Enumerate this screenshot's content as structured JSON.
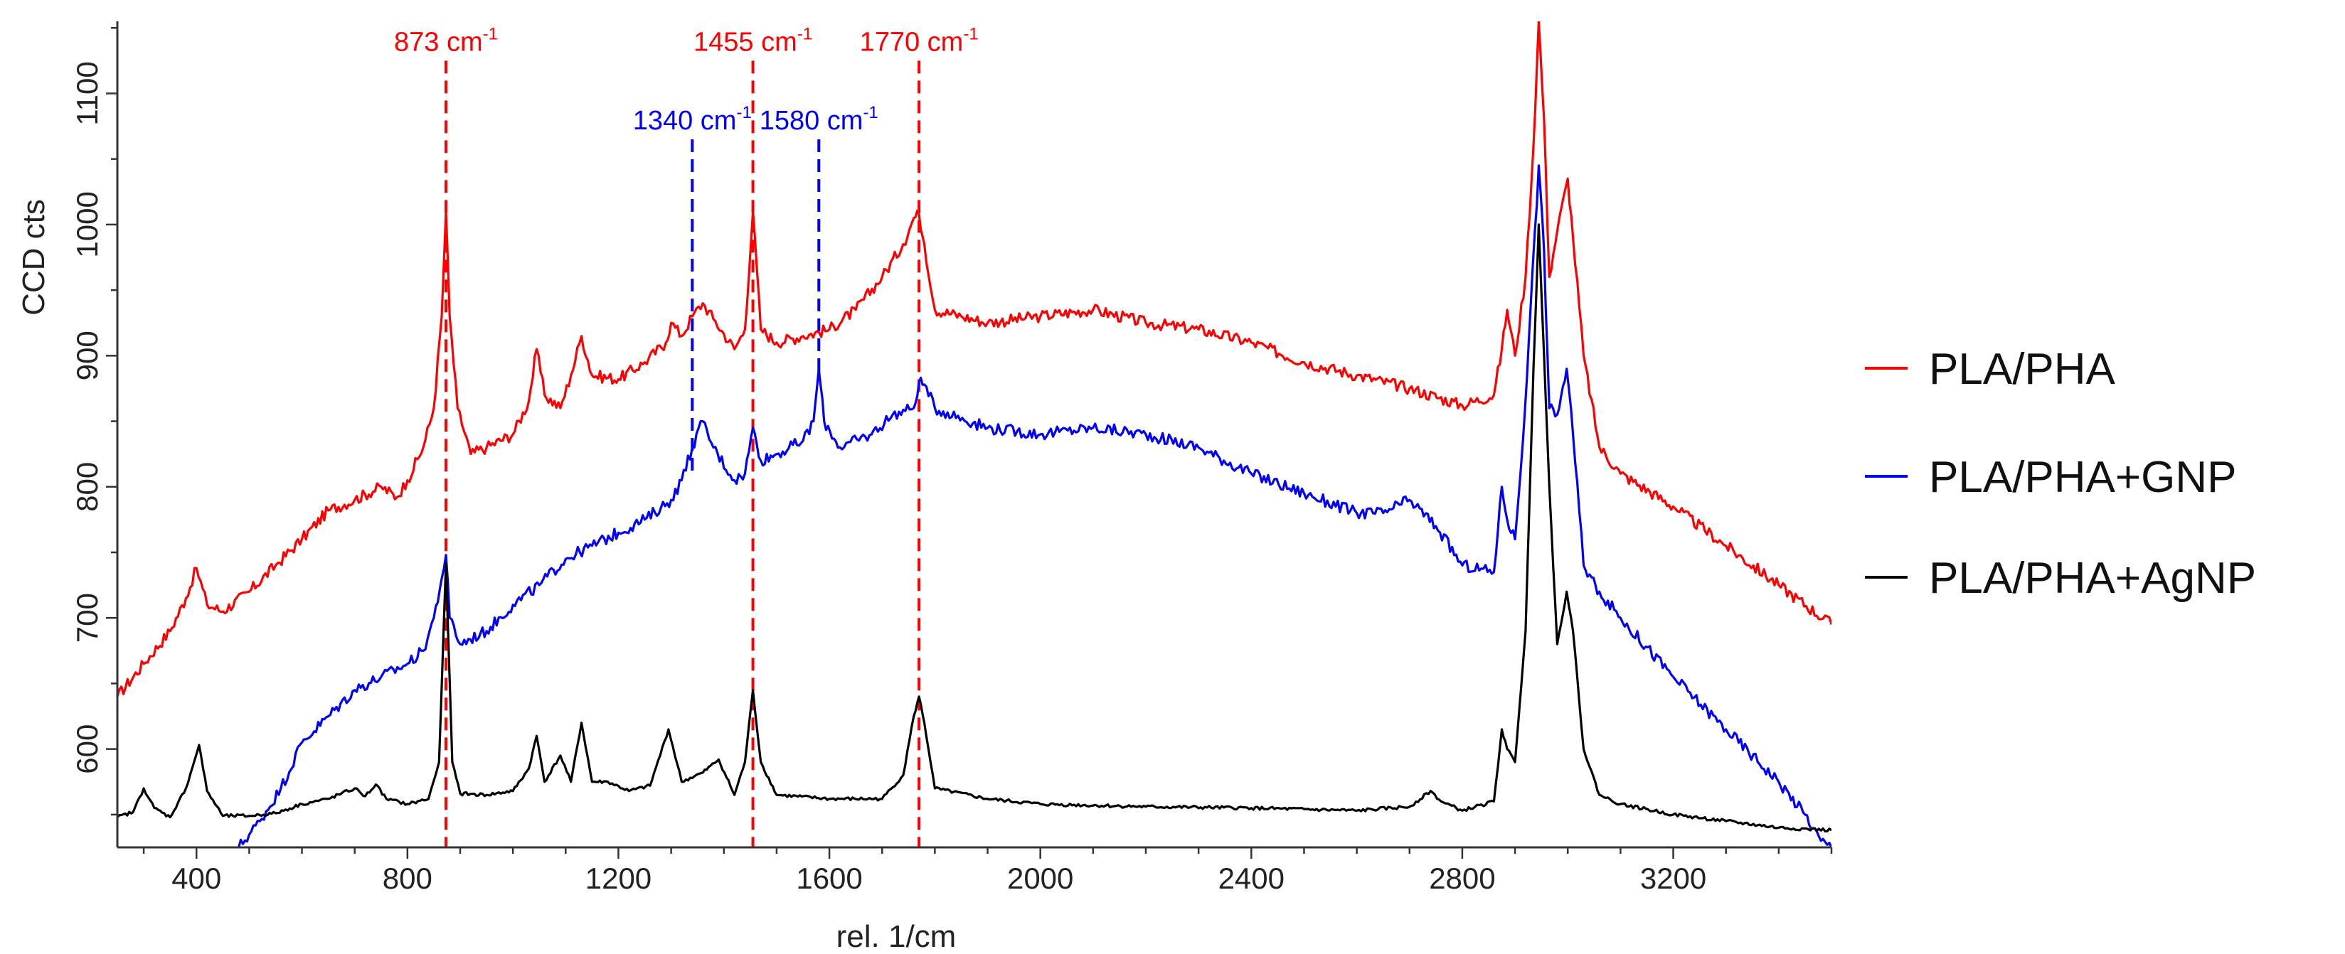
{
  "chart_data": {
    "type": "line",
    "title": "",
    "xlabel": "rel. 1/cm",
    "ylabel": "CCD cts",
    "xlim": [
      250,
      3500
    ],
    "ylim": [
      525,
      1155
    ],
    "xticks": [
      400,
      800,
      1200,
      1600,
      2000,
      2400,
      2800,
      3200
    ],
    "yticks": [
      600,
      700,
      800,
      900,
      1000,
      1100
    ],
    "grid": false,
    "legend_position": "right",
    "series": [
      {
        "name": "PLA/PHA",
        "color": "#ff0000",
        "x": [
          250,
          300,
          350,
          380,
          400,
          420,
          450,
          500,
          550,
          600,
          650,
          700,
          750,
          780,
          800,
          830,
          850,
          865,
          873,
          880,
          895,
          920,
          950,
          1000,
          1030,
          1045,
          1060,
          1090,
          1110,
          1130,
          1150,
          1200,
          1250,
          1290,
          1300,
          1320,
          1340,
          1360,
          1380,
          1420,
          1440,
          1455,
          1470,
          1500,
          1550,
          1600,
          1650,
          1700,
          1740,
          1760,
          1770,
          1780,
          1800,
          1850,
          1900,
          2000,
          2100,
          2200,
          2300,
          2400,
          2500,
          2600,
          2700,
          2800,
          2860,
          2875,
          2885,
          2900,
          2920,
          2935,
          2945,
          2955,
          2965,
          2980,
          3000,
          3010,
          3030,
          3060,
          3100,
          3200,
          3300,
          3400,
          3500
        ],
        "y": [
          640,
          665,
          690,
          715,
          738,
          710,
          705,
          720,
          740,
          760,
          782,
          790,
          800,
          792,
          805,
          830,
          860,
          930,
          1010,
          930,
          860,
          825,
          830,
          840,
          865,
          905,
          870,
          860,
          885,
          915,
          885,
          882,
          895,
          910,
          925,
          915,
          930,
          940,
          928,
          905,
          920,
          1010,
          920,
          910,
          915,
          920,
          935,
          960,
          985,
          1005,
          1008,
          985,
          935,
          930,
          925,
          930,
          935,
          925,
          920,
          910,
          895,
          885,
          875,
          862,
          870,
          905,
          935,
          900,
          960,
          1060,
          1155,
          1080,
          960,
          995,
          1035,
          990,
          900,
          830,
          810,
          785,
          755,
          725,
          695
        ]
      },
      {
        "name": "PLA/PHA+GNP",
        "color": "#0000ff",
        "x": [
          480,
          520,
          560,
          600,
          650,
          700,
          750,
          800,
          830,
          850,
          865,
          873,
          880,
          900,
          950,
          1000,
          1050,
          1100,
          1150,
          1200,
          1250,
          1300,
          1320,
          1340,
          1360,
          1380,
          1420,
          1440,
          1455,
          1470,
          1500,
          1550,
          1570,
          1580,
          1590,
          1620,
          1680,
          1720,
          1760,
          1770,
          1780,
          1800,
          1900,
          2000,
          2100,
          2200,
          2300,
          2400,
          2500,
          2600,
          2650,
          2700,
          2750,
          2800,
          2860,
          2875,
          2885,
          2900,
          2915,
          2930,
          2945,
          2955,
          2965,
          2980,
          2998,
          3010,
          3030,
          3060,
          3100,
          3200,
          3300,
          3400,
          3450,
          3480,
          3500
        ],
        "y": [
          525,
          545,
          570,
          605,
          625,
          645,
          655,
          665,
          675,
          700,
          730,
          748,
          700,
          680,
          690,
          710,
          725,
          745,
          755,
          765,
          775,
          790,
          805,
          830,
          850,
          830,
          805,
          810,
          845,
          820,
          825,
          835,
          850,
          890,
          850,
          830,
          840,
          855,
          860,
          880,
          878,
          860,
          845,
          840,
          845,
          840,
          830,
          810,
          795,
          780,
          780,
          790,
          770,
          740,
          735,
          800,
          775,
          760,
          835,
          940,
          1045,
          980,
          860,
          855,
          890,
          840,
          740,
          720,
          700,
          655,
          615,
          575,
          550,
          530,
          525
        ]
      },
      {
        "name": "PLA/PHA+AgNP",
        "color": "#000000",
        "x": [
          250,
          280,
          300,
          320,
          350,
          380,
          405,
          420,
          450,
          500,
          550,
          600,
          650,
          700,
          720,
          740,
          760,
          800,
          840,
          860,
          873,
          885,
          900,
          950,
          1000,
          1030,
          1045,
          1060,
          1090,
          1110,
          1130,
          1150,
          1180,
          1220,
          1260,
          1295,
          1320,
          1360,
          1390,
          1420,
          1440,
          1455,
          1470,
          1500,
          1600,
          1700,
          1740,
          1760,
          1770,
          1780,
          1800,
          1900,
          2000,
          2200,
          2400,
          2600,
          2700,
          2740,
          2760,
          2800,
          2860,
          2875,
          2885,
          2900,
          2920,
          2935,
          2945,
          2955,
          2965,
          2980,
          2998,
          3010,
          3030,
          3060,
          3100,
          3200,
          3300,
          3400,
          3500
        ],
        "y": [
          548,
          552,
          570,
          555,
          548,
          570,
          603,
          568,
          549,
          549,
          551,
          558,
          562,
          570,
          564,
          573,
          562,
          558,
          562,
          590,
          742,
          590,
          566,
          565,
          568,
          585,
          610,
          575,
          595,
          575,
          620,
          575,
          575,
          568,
          572,
          615,
          575,
          582,
          592,
          565,
          590,
          645,
          590,
          565,
          562,
          562,
          580,
          625,
          640,
          620,
          570,
          562,
          558,
          556,
          555,
          553,
          556,
          568,
          560,
          553,
          560,
          615,
          600,
          590,
          690,
          890,
          1000,
          900,
          800,
          680,
          720,
          690,
          600,
          565,
          558,
          550,
          545,
          540,
          538
        ]
      }
    ],
    "annotations": [
      {
        "label": "873 cm",
        "sup": "-1",
        "x": 873,
        "color": "#ff0000",
        "line_top": 1125
      },
      {
        "label": "1455 cm",
        "sup": "-1",
        "x": 1455,
        "color": "#ff0000",
        "line_top": 1125
      },
      {
        "label": "1770 cm",
        "sup": "-1",
        "x": 1770,
        "color": "#ff0000",
        "line_top": 1125
      },
      {
        "label": "1340 cm",
        "sup": "-1",
        "x": 1340,
        "color": "#0000ff",
        "line_top": 1065,
        "line_bottom": 810
      },
      {
        "label": "1580 cm",
        "sup": "-1",
        "x": 1580,
        "color": "#0000ff",
        "line_top": 1065,
        "line_bottom": 885
      }
    ]
  }
}
